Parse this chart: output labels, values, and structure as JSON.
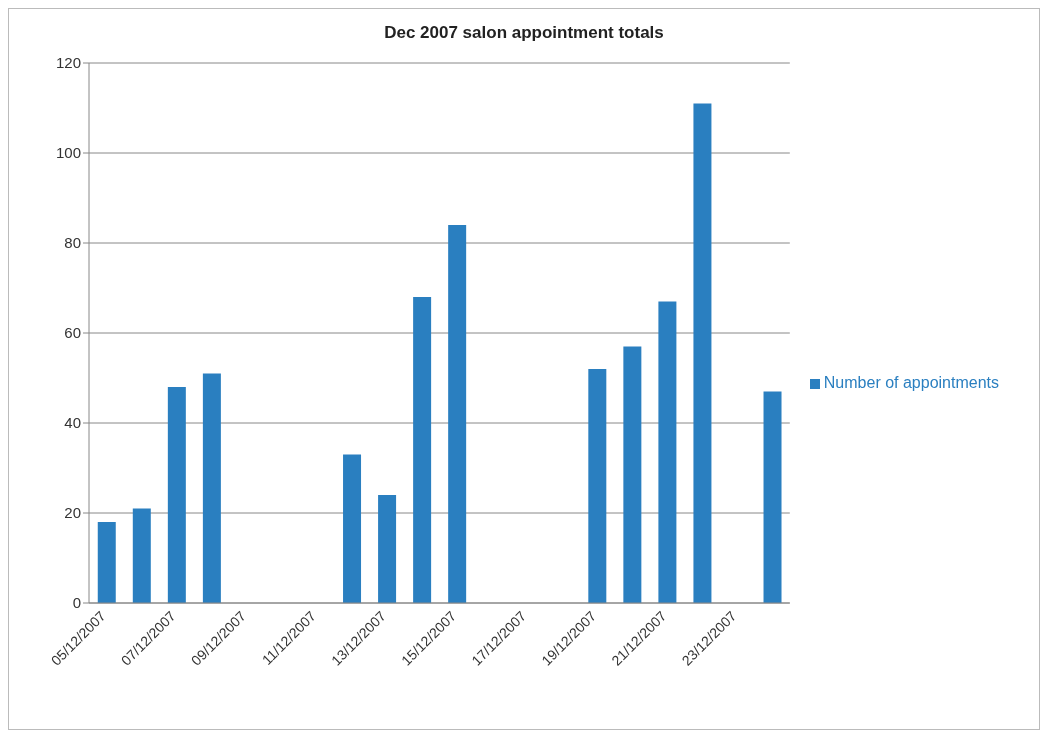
{
  "chart_data": {
    "type": "bar",
    "title": "Dec 2007 salon appointment totals",
    "categories": [
      "05/12/2007",
      null,
      "07/12/2007",
      null,
      "09/12/2007",
      null,
      "11/12/2007",
      null,
      "13/12/2007",
      null,
      "15/12/2007",
      null,
      "17/12/2007",
      null,
      "19/12/2007",
      null,
      "21/12/2007",
      null,
      "23/12/2007",
      null
    ],
    "series": [
      {
        "name": "Number of appointments",
        "color": "#2a7fc0",
        "values": [
          18,
          21,
          48,
          51,
          null,
          null,
          null,
          33,
          24,
          68,
          84,
          null,
          null,
          null,
          52,
          57,
          67,
          111,
          null,
          47
        ]
      }
    ],
    "ylim": [
      0,
      120
    ],
    "yticks": [
      0,
      20,
      40,
      60,
      80,
      100,
      120
    ],
    "grid": "y",
    "legend": "right"
  }
}
